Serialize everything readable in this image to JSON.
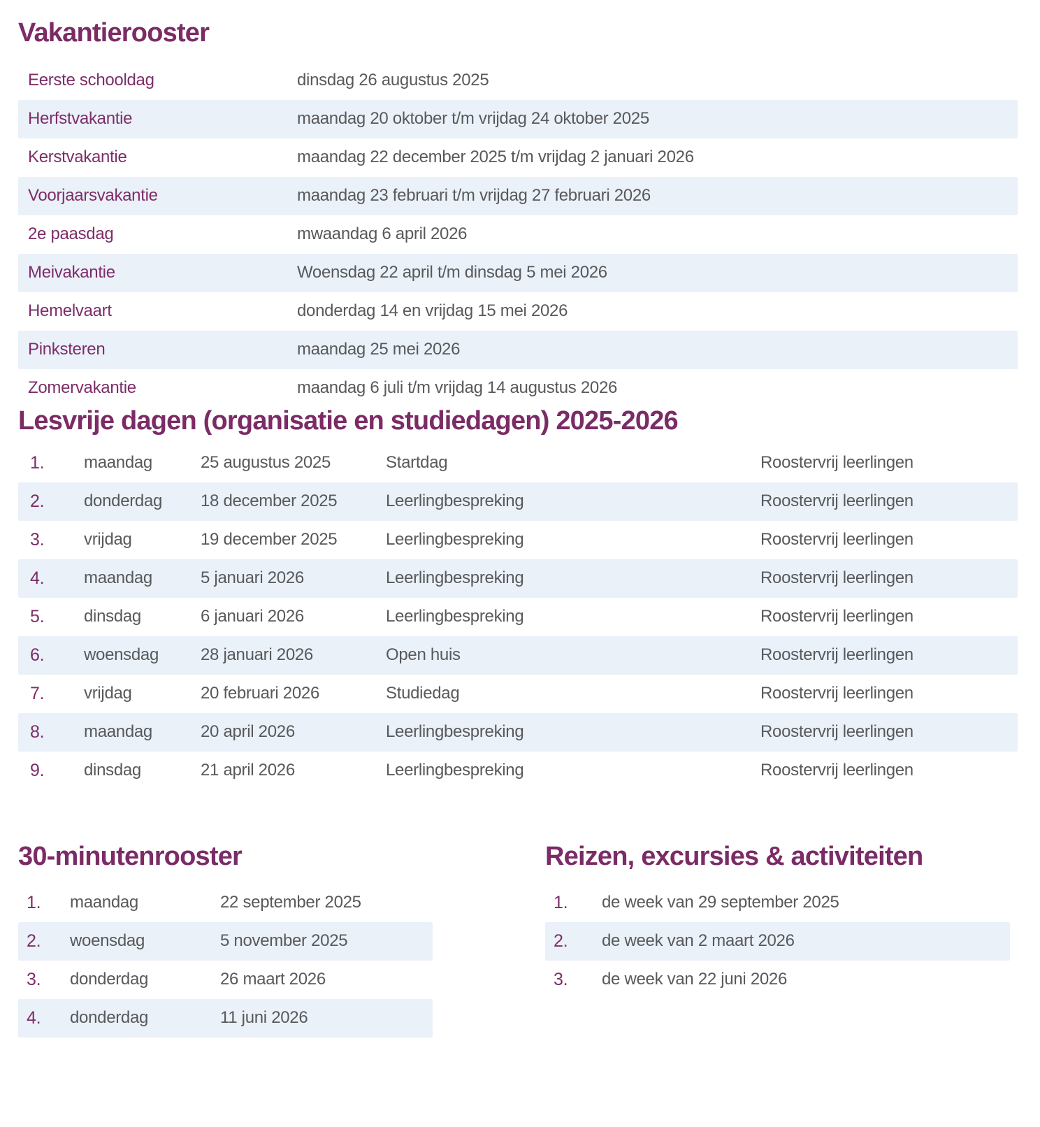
{
  "colors": {
    "accent_purple": "#7b2b65",
    "label_purple": "#7d2d68",
    "body_gray": "#58595b",
    "row_alt_blue": "#eaf1f9"
  },
  "vakantierooster": {
    "title": "Vakantierooster",
    "rows": [
      {
        "label": "Eerste schooldag",
        "value": "dinsdag 26 augustus 2025"
      },
      {
        "label": "Herfstvakantie",
        "value": "maandag 20 oktober t/m vrijdag 24 oktober 2025"
      },
      {
        "label": "Kerstvakantie",
        "value": "maandag 22 december 2025 t/m vrijdag 2 januari 2026"
      },
      {
        "label": "Voorjaarsvakantie",
        "value": "maandag 23 februari t/m vrijdag 27 februari 2026"
      },
      {
        "label": "2e paasdag",
        "value": "mwaandag 6 april 2026"
      },
      {
        "label": "Meivakantie",
        "value": "Woensdag 22 april t/m dinsdag 5 mei 2026"
      },
      {
        "label": "Hemelvaart",
        "value": "donderdag 14 en vrijdag 15 mei 2026"
      },
      {
        "label": "Pinksteren",
        "value": "maandag 25 mei 2026"
      },
      {
        "label": "Zomervakantie",
        "value": "maandag 6 juli t/m vrijdag 14 augustus 2026"
      }
    ]
  },
  "lesvrije_dagen": {
    "title": "Lesvrije dagen (organisatie en studiedagen) 2025-2026",
    "rows": [
      {
        "num": "1.",
        "day": "maandag",
        "date": "25 augustus 2025",
        "description": "Startdag",
        "status": "Roostervrij leerlingen"
      },
      {
        "num": "2.",
        "day": "donderdag",
        "date": "18 december 2025",
        "description": "Leerlingbespreking",
        "status": "Roostervrij leerlingen"
      },
      {
        "num": "3.",
        "day": "vrijdag",
        "date": "19 december 2025",
        "description": "Leerlingbespreking",
        "status": "Roostervrij leerlingen"
      },
      {
        "num": "4.",
        "day": "maandag",
        "date": "5 januari 2026",
        "description": "Leerlingbespreking",
        "status": "Roostervrij leerlingen"
      },
      {
        "num": "5.",
        "day": "dinsdag",
        "date": "6 januari 2026",
        "description": "Leerlingbespreking",
        "status": "Roostervrij leerlingen"
      },
      {
        "num": "6.",
        "day": "woensdag",
        "date": "28 januari 2026",
        "description": "Open huis",
        "status": "Roostervrij leerlingen"
      },
      {
        "num": "7.",
        "day": "vrijdag",
        "date": "20 februari 2026",
        "description": "Studiedag",
        "status": "Roostervrij leerlingen"
      },
      {
        "num": "8.",
        "day": "maandag",
        "date": "20 april 2026",
        "description": "Leerlingbespreking",
        "status": "Roostervrij leerlingen"
      },
      {
        "num": "9.",
        "day": "dinsdag",
        "date": "21 april 2026",
        "description": "Leerlingbespreking",
        "status": "Roostervrij leerlingen"
      }
    ]
  },
  "minutenrooster": {
    "title": "30-minutenrooster",
    "rows": [
      {
        "num": "1.",
        "day": "maandag",
        "date": "22 september 2025"
      },
      {
        "num": "2.",
        "day": "woensdag",
        "date": "5 november 2025"
      },
      {
        "num": "3.",
        "day": "donderdag",
        "date": "26 maart 2026"
      },
      {
        "num": "4.",
        "day": "donderdag",
        "date": "11 juni 2026"
      }
    ]
  },
  "reizen": {
    "title": "Reizen, excursies & activiteiten",
    "rows": [
      {
        "num": "1.",
        "text": "de week van 29 september 2025"
      },
      {
        "num": "2.",
        "text": "de week van 2 maart 2026"
      },
      {
        "num": "3.",
        "text": "de week van 22 juni 2026"
      }
    ]
  }
}
